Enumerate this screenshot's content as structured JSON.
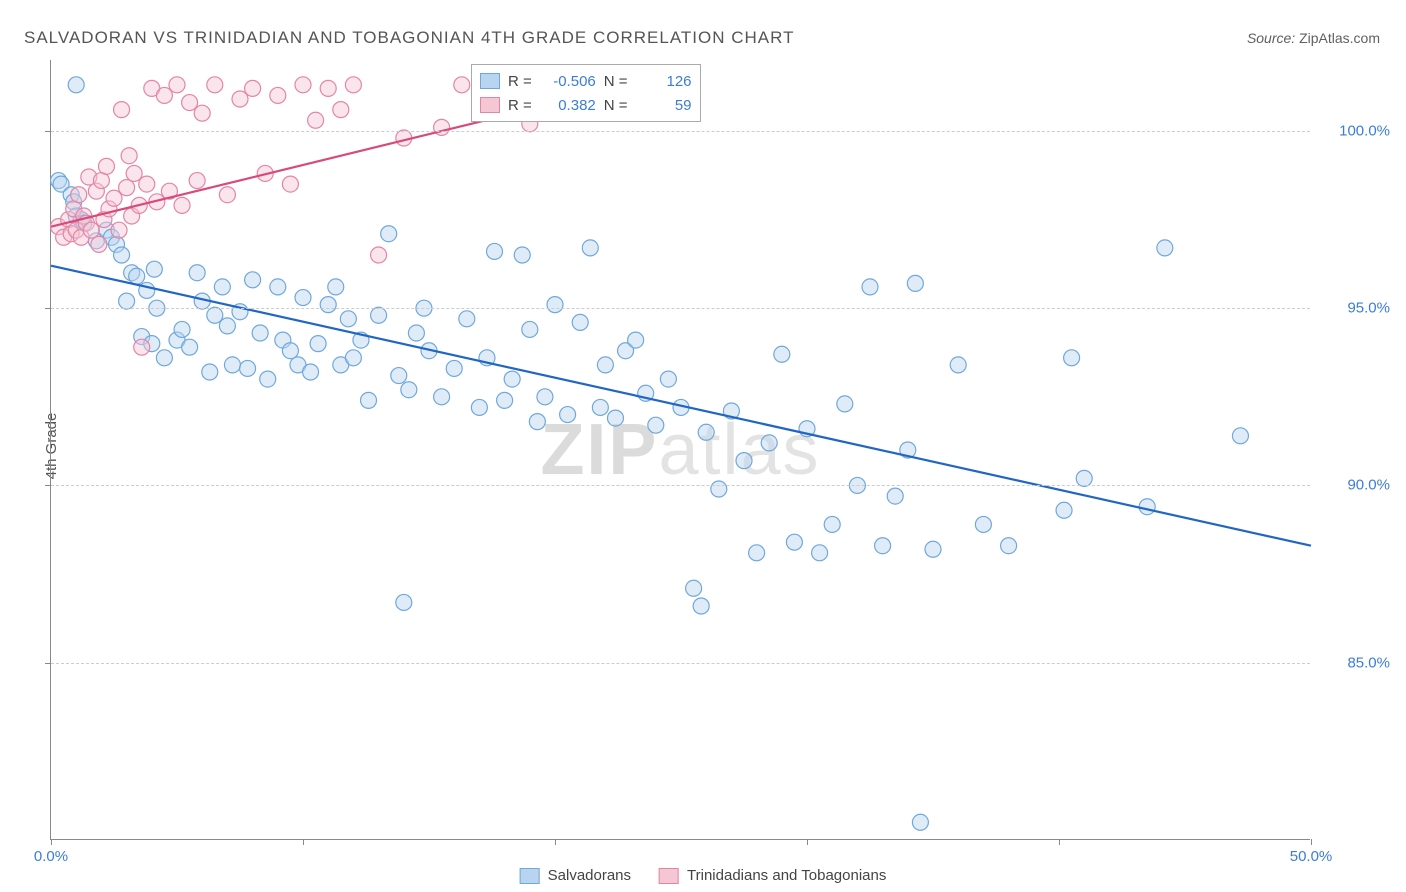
{
  "title": "SALVADORAN VS TRINIDADIAN AND TOBAGONIAN 4TH GRADE CORRELATION CHART",
  "source_label": "Source:",
  "source_name": "ZipAtlas.com",
  "ylabel": "4th Grade",
  "watermark_zip": "ZIP",
  "watermark_atlas": "atlas",
  "chart": {
    "type": "scatter",
    "xlim": [
      0,
      50
    ],
    "ylim": [
      80,
      102
    ],
    "xtick_positions": [
      0,
      10,
      20,
      30,
      40,
      50
    ],
    "xtick_labels": [
      "0.0%",
      "",
      "",
      "",
      "",
      "50.0%"
    ],
    "ytick_positions": [
      85,
      90,
      95,
      100
    ],
    "ytick_labels": [
      "85.0%",
      "90.0%",
      "95.0%",
      "100.0%"
    ],
    "grid_color": "#cccccc",
    "background_color": "#ffffff",
    "axis_color": "#888888",
    "marker_radius": 8,
    "marker_opacity": 0.45,
    "marker_stroke_width": 1.2,
    "series": [
      {
        "name": "Salvadorans",
        "color_fill": "#b8d4f0",
        "color_stroke": "#6fa8dc",
        "trend_color": "#2066c4",
        "trend_width": 2.2,
        "trend_start": [
          0,
          96.2
        ],
        "trend_end": [
          50,
          88.3
        ],
        "R": "-0.506",
        "N": "126",
        "points": [
          [
            0.3,
            98.6
          ],
          [
            0.4,
            98.5
          ],
          [
            0.8,
            98.2
          ],
          [
            0.9,
            98.0
          ],
          [
            1.0,
            101.3
          ],
          [
            1.0,
            97.6
          ],
          [
            1.2,
            97.5
          ],
          [
            1.3,
            97.4
          ],
          [
            1.8,
            96.9
          ],
          [
            2.2,
            97.2
          ],
          [
            2.4,
            97.0
          ],
          [
            2.6,
            96.8
          ],
          [
            2.8,
            96.5
          ],
          [
            3.0,
            95.2
          ],
          [
            3.2,
            96.0
          ],
          [
            3.4,
            95.9
          ],
          [
            3.6,
            94.2
          ],
          [
            3.8,
            95.5
          ],
          [
            4.0,
            94.0
          ],
          [
            4.1,
            96.1
          ],
          [
            4.2,
            95.0
          ],
          [
            4.5,
            93.6
          ],
          [
            5.0,
            94.1
          ],
          [
            5.2,
            94.4
          ],
          [
            5.5,
            93.9
          ],
          [
            5.8,
            96.0
          ],
          [
            6.0,
            95.2
          ],
          [
            6.3,
            93.2
          ],
          [
            6.5,
            94.8
          ],
          [
            6.8,
            95.6
          ],
          [
            7.0,
            94.5
          ],
          [
            7.2,
            93.4
          ],
          [
            7.5,
            94.9
          ],
          [
            7.8,
            93.3
          ],
          [
            8.0,
            95.8
          ],
          [
            8.3,
            94.3
          ],
          [
            8.6,
            93.0
          ],
          [
            9.0,
            95.6
          ],
          [
            9.2,
            94.1
          ],
          [
            9.5,
            93.8
          ],
          [
            9.8,
            93.4
          ],
          [
            10.0,
            95.3
          ],
          [
            10.3,
            93.2
          ],
          [
            10.6,
            94.0
          ],
          [
            11.0,
            95.1
          ],
          [
            11.3,
            95.6
          ],
          [
            11.5,
            93.4
          ],
          [
            11.8,
            94.7
          ],
          [
            12.0,
            93.6
          ],
          [
            12.3,
            94.1
          ],
          [
            12.6,
            92.4
          ],
          [
            13.0,
            94.8
          ],
          [
            13.4,
            97.1
          ],
          [
            13.8,
            93.1
          ],
          [
            14.0,
            86.7
          ],
          [
            14.2,
            92.7
          ],
          [
            14.5,
            94.3
          ],
          [
            14.8,
            95.0
          ],
          [
            15.0,
            93.8
          ],
          [
            15.5,
            92.5
          ],
          [
            16.0,
            93.3
          ],
          [
            16.5,
            94.7
          ],
          [
            17.0,
            92.2
          ],
          [
            17.3,
            93.6
          ],
          [
            17.6,
            96.6
          ],
          [
            18.0,
            92.4
          ],
          [
            18.3,
            93.0
          ],
          [
            18.7,
            96.5
          ],
          [
            19.0,
            94.4
          ],
          [
            19.3,
            91.8
          ],
          [
            19.6,
            92.5
          ],
          [
            20.0,
            95.1
          ],
          [
            20.5,
            92.0
          ],
          [
            21.0,
            94.6
          ],
          [
            21.4,
            96.7
          ],
          [
            21.8,
            92.2
          ],
          [
            22.0,
            93.4
          ],
          [
            22.4,
            91.9
          ],
          [
            22.8,
            93.8
          ],
          [
            23.2,
            94.1
          ],
          [
            23.6,
            92.6
          ],
          [
            24.0,
            91.7
          ],
          [
            24.5,
            93.0
          ],
          [
            25.0,
            92.2
          ],
          [
            25.5,
            87.1
          ],
          [
            25.8,
            86.6
          ],
          [
            26.0,
            91.5
          ],
          [
            26.5,
            89.9
          ],
          [
            27.0,
            92.1
          ],
          [
            27.5,
            90.7
          ],
          [
            28.0,
            88.1
          ],
          [
            28.5,
            91.2
          ],
          [
            29.0,
            93.7
          ],
          [
            29.5,
            88.4
          ],
          [
            30.0,
            91.6
          ],
          [
            30.5,
            88.1
          ],
          [
            31.0,
            88.9
          ],
          [
            31.5,
            92.3
          ],
          [
            32.0,
            90.0
          ],
          [
            32.5,
            95.6
          ],
          [
            33.0,
            88.3
          ],
          [
            33.5,
            89.7
          ],
          [
            34.0,
            91.0
          ],
          [
            34.3,
            95.7
          ],
          [
            34.5,
            80.5
          ],
          [
            35.0,
            88.2
          ],
          [
            36.0,
            93.4
          ],
          [
            37.0,
            88.9
          ],
          [
            38.0,
            88.3
          ],
          [
            40.2,
            89.3
          ],
          [
            40.5,
            93.6
          ],
          [
            41.0,
            90.2
          ],
          [
            43.5,
            89.4
          ],
          [
            44.2,
            96.7
          ],
          [
            47.2,
            91.4
          ]
        ]
      },
      {
        "name": "Trinidadians and Tobagonians",
        "color_fill": "#f5c6d4",
        "color_stroke": "#e585a5",
        "trend_color": "#d84a7a",
        "trend_width": 2.2,
        "trend_start": [
          0,
          97.3
        ],
        "trend_end": [
          23,
          101.3
        ],
        "R": "0.382",
        "N": "59",
        "points": [
          [
            0.3,
            97.3
          ],
          [
            0.5,
            97.0
          ],
          [
            0.7,
            97.5
          ],
          [
            0.8,
            97.1
          ],
          [
            0.9,
            97.8
          ],
          [
            1.0,
            97.2
          ],
          [
            1.1,
            98.2
          ],
          [
            1.2,
            97.0
          ],
          [
            1.3,
            97.6
          ],
          [
            1.4,
            97.4
          ],
          [
            1.5,
            98.7
          ],
          [
            1.6,
            97.2
          ],
          [
            1.8,
            98.3
          ],
          [
            1.9,
            96.8
          ],
          [
            2.0,
            98.6
          ],
          [
            2.1,
            97.5
          ],
          [
            2.2,
            99.0
          ],
          [
            2.3,
            97.8
          ],
          [
            2.5,
            98.1
          ],
          [
            2.7,
            97.2
          ],
          [
            2.8,
            100.6
          ],
          [
            3.0,
            98.4
          ],
          [
            3.1,
            99.3
          ],
          [
            3.2,
            97.6
          ],
          [
            3.3,
            98.8
          ],
          [
            3.5,
            97.9
          ],
          [
            3.6,
            93.9
          ],
          [
            3.8,
            98.5
          ],
          [
            4.0,
            101.2
          ],
          [
            4.2,
            98.0
          ],
          [
            4.5,
            101.0
          ],
          [
            4.7,
            98.3
          ],
          [
            5.0,
            101.3
          ],
          [
            5.2,
            97.9
          ],
          [
            5.5,
            100.8
          ],
          [
            5.8,
            98.6
          ],
          [
            6.0,
            100.5
          ],
          [
            6.5,
            101.3
          ],
          [
            7.0,
            98.2
          ],
          [
            7.5,
            100.9
          ],
          [
            8.0,
            101.2
          ],
          [
            8.5,
            98.8
          ],
          [
            9.0,
            101.0
          ],
          [
            9.5,
            98.5
          ],
          [
            10.0,
            101.3
          ],
          [
            10.5,
            100.3
          ],
          [
            11.0,
            101.2
          ],
          [
            11.5,
            100.6
          ],
          [
            12.0,
            101.3
          ],
          [
            13.0,
            96.5
          ],
          [
            14.0,
            99.8
          ],
          [
            15.5,
            100.1
          ],
          [
            16.3,
            101.3
          ],
          [
            18.0,
            101.3
          ],
          [
            19.0,
            100.2
          ],
          [
            20.0,
            101.3
          ],
          [
            21.0,
            101.3
          ],
          [
            22.0,
            101.3
          ],
          [
            23.0,
            101.3
          ]
        ]
      }
    ]
  },
  "stats_box": {
    "r_label": "R =",
    "n_label": "N ="
  },
  "legend": {
    "series1": "Salvadorans",
    "series2": "Trinidadians and Tobagonians"
  }
}
